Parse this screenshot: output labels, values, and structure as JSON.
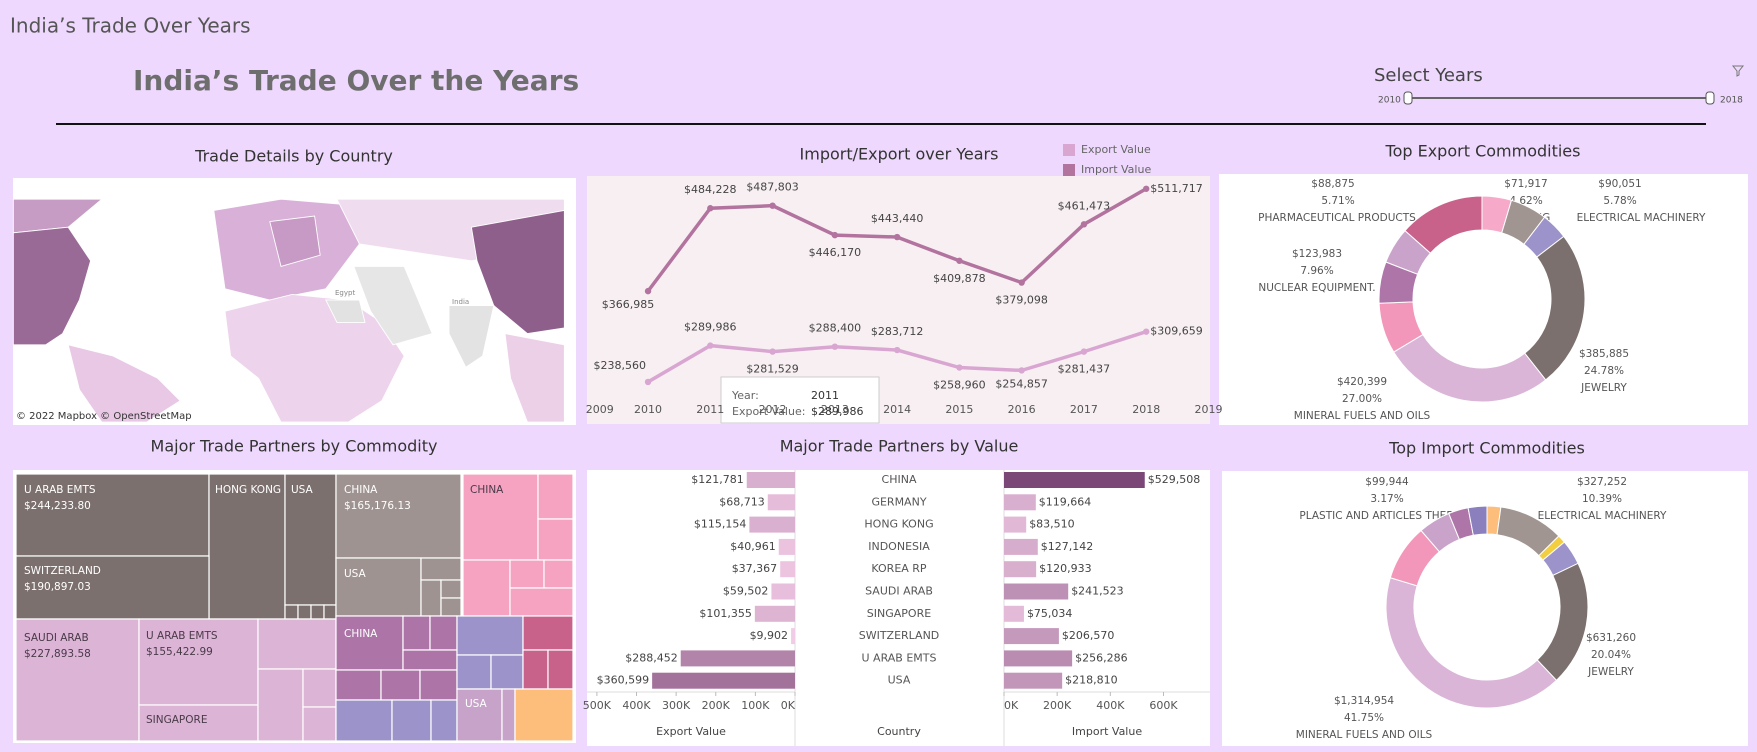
{
  "header": {
    "tab_title": "India’s Trade Over Years",
    "title": "India’s Trade Over the Years",
    "filter_label": "Select Years",
    "range": [
      2010,
      2018
    ]
  },
  "chart_data": [
    {
      "type": "map",
      "title": "Trade Details by Country",
      "attribution": "© 2022 Mapbox © OpenStreetMap",
      "place_labels": [
        "Egypt",
        "India"
      ]
    },
    {
      "type": "line",
      "title": "Import/Export over Years",
      "x": [
        2010,
        2011,
        2012,
        2013,
        2014,
        2015,
        2016,
        2017,
        2018
      ],
      "xlim": [
        2009,
        2019
      ],
      "xticks": [
        2009,
        2010,
        2011,
        2012,
        2013,
        2014,
        2015,
        2016,
        2017,
        2018,
        2019
      ],
      "ylim": [
        180000,
        530000
      ],
      "legend": "top-right",
      "series": [
        {
          "name": "Export Value",
          "color": "#d9a6d2",
          "values": [
            238560,
            289986,
            281529,
            288400,
            283712,
            258960,
            254857,
            281437,
            309659
          ],
          "value_labels": [
            "$238,560",
            "$289,986",
            "$281,529",
            "$288,400",
            "$283,712",
            "$258,960",
            "$254,857",
            "$281,437",
            "$309,659"
          ]
        },
        {
          "name": "Import Value",
          "color": "#b2739f",
          "values": [
            366985,
            484228,
            487803,
            446170,
            443440,
            409878,
            379098,
            461473,
            511717
          ],
          "value_labels": [
            "$366,985",
            "$484,228",
            "$487,803",
            "$446,170",
            "$443,440",
            "$409,878",
            "$379,098",
            "$461,473",
            "$511,717"
          ]
        }
      ],
      "tooltip": {
        "year_label": "Year:",
        "value_label": "Export Value:"
      }
    },
    {
      "type": "treemap",
      "title": "Major Trade Partners by Commodity",
      "tiles": [
        {
          "label": "U ARAB EMTS",
          "value": 244233.8,
          "value_label": "$244,233.80"
        },
        {
          "label": "HONG KONG"
        },
        {
          "label": "USA"
        },
        {
          "label": "SWITZERLAND",
          "value": 190897.03,
          "value_label": "$190,897.03"
        },
        {
          "label": "CHINA",
          "value": 165176.13,
          "value_label": "$165,176.13"
        },
        {
          "label": "USA"
        },
        {
          "label": "CHINA"
        },
        {
          "label": "SAUDI ARAB",
          "value": 227893.58,
          "value_label": "$227,893.58"
        },
        {
          "label": "U ARAB EMTS",
          "value": 155422.99,
          "value_label": "$155,422.99"
        },
        {
          "label": "SINGAPORE"
        },
        {
          "label": "CHINA"
        },
        {
          "label": "USA"
        }
      ]
    },
    {
      "type": "diverging-bar",
      "title": "Major Trade Partners by Value",
      "category_axis_title": "Country",
      "categories": [
        "CHINA",
        "GERMANY",
        "HONG KONG",
        "INDONESIA",
        "KOREA RP",
        "SAUDI ARAB",
        "SINGAPORE",
        "SWITZERLAND",
        "U ARAB EMTS",
        "USA"
      ],
      "color_scale": [
        "#f2cbe6",
        "#7b4777"
      ],
      "series": [
        {
          "name": "Export Value",
          "values": [
            121781,
            68713,
            115154,
            40961,
            37367,
            59502,
            101355,
            9902,
            288452,
            360599
          ],
          "value_labels": [
            "$121,781",
            "$68,713",
            "$115,154",
            "$40,961",
            "$37,367",
            "$59,502",
            "$101,355",
            "$9,902",
            "$288,452",
            "$360,599"
          ],
          "xlim": [
            0,
            525000
          ],
          "xticks": [
            {
              "value": 0,
              "label": "0K"
            },
            {
              "value": 100000,
              "label": "100K"
            },
            {
              "value": 200000,
              "label": "200K"
            },
            {
              "value": 300000,
              "label": "300K"
            },
            {
              "value": 400000,
              "label": "400K"
            },
            {
              "value": 500000,
              "label": "500K"
            }
          ]
        },
        {
          "name": "Import Value",
          "values": [
            529508,
            119664,
            83510,
            127142,
            120933,
            241523,
            75034,
            206570,
            256286,
            218810
          ],
          "value_labels": [
            "$529,508",
            "$119,664",
            "$83,510",
            "$127,142",
            "$120,933",
            "$241,523",
            "$75,034",
            "$206,570",
            "$256,286",
            "$218,810"
          ],
          "xlim": [
            0,
            775000
          ],
          "xticks": [
            {
              "value": 0,
              "label": "0K"
            },
            {
              "value": 200000,
              "label": "200K"
            },
            {
              "value": 400000,
              "label": "400K"
            },
            {
              "value": 600000,
              "label": "600K"
            }
          ]
        }
      ]
    },
    {
      "type": "donut",
      "title": "Top Export Commodities",
      "categories": [
        "CLOTHING",
        "ELECTRICAL MACHINERY",
        null,
        "JEWELRY",
        "MINERAL FUELS AND OILS",
        "NUCLEAR EQUIPMENT.",
        null,
        "PHARMACEUTICAL PRODUCTS",
        null
      ],
      "values": [
        71917,
        90051,
        65395,
        385885,
        420399,
        123983,
        101207,
        88875,
        209321
      ],
      "value_labels": [
        "$71,917",
        "$90,051",
        null,
        "$385,885",
        "$420,399",
        "$123,983",
        null,
        "$88,875",
        null
      ],
      "percents": [
        4.62,
        5.78,
        null,
        24.78,
        27.0,
        7.96,
        null,
        5.71,
        null
      ],
      "percent_labels": [
        "4.62%",
        "5.78%",
        null,
        "24.78%",
        "27.00%",
        "7.96%",
        null,
        "5.71%",
        null
      ],
      "colors": [
        "#f7a9c9",
        "#a09591",
        "#9c93cb",
        "#7b706e",
        "#dab5d7",
        "#f297b9",
        "#ae75a9",
        "#caa3ca",
        "#c8628b"
      ]
    },
    {
      "type": "donut",
      "title": "Top Import Commodities",
      "categories": [
        null,
        "ELECTRICAL MACHINERY",
        null,
        null,
        "JEWELRY",
        "MINERAL FUELS AND OILS",
        null,
        null,
        "PLASTIC AND ARTICLES THEREOF",
        null
      ],
      "values": [
        69291,
        327252,
        40945,
        125984,
        631260,
        1314954,
        283463,
        162204,
        99944,
        94488
      ],
      "value_labels": [
        null,
        "$327,252",
        null,
        null,
        "$631,260",
        "$1,314,954",
        null,
        null,
        "$99,944",
        null
      ],
      "percents": [
        null,
        10.39,
        null,
        null,
        20.04,
        41.75,
        null,
        null,
        3.17,
        null
      ],
      "percent_labels": [
        null,
        "10.39%",
        null,
        null,
        "20.04%",
        "41.75%",
        null,
        null,
        "3.17%",
        null
      ],
      "colors": [
        "#fdbe7b",
        "#a09591",
        "#f3cf3f",
        "#9c93cb",
        "#7b706e",
        "#dab5d7",
        "#f297b9",
        "#caa3ca",
        "#ae75a9",
        "#8b7fbd"
      ]
    }
  ]
}
